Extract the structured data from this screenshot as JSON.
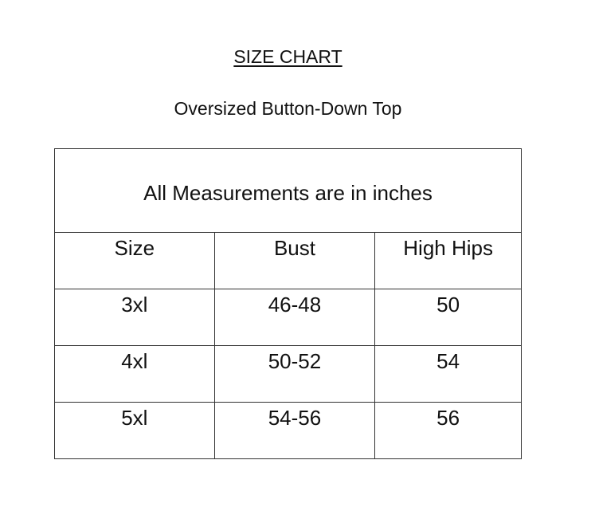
{
  "title": "SIZE CHART",
  "subtitle": "Oversized Button-Down Top",
  "table": {
    "note": "All Measurements are in inches",
    "headers": [
      "Size",
      "Bust",
      "High Hips"
    ],
    "rows": [
      [
        "3xl",
        "46-48",
        "50"
      ],
      [
        "4xl",
        "50-52",
        "54"
      ],
      [
        "5xl",
        "54-56",
        "56"
      ]
    ]
  }
}
